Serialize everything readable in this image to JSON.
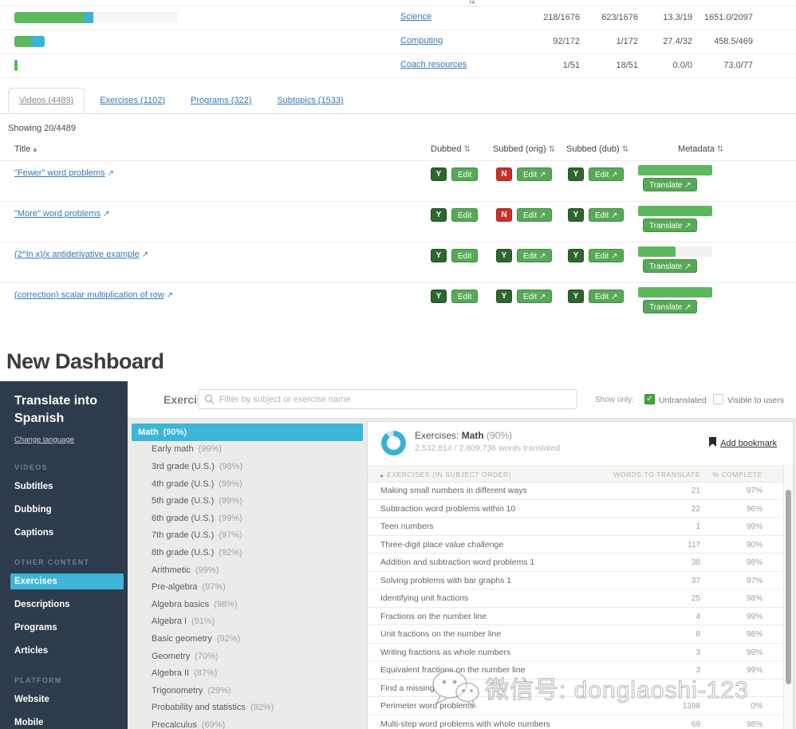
{
  "top_fragment": "⇅",
  "icons": {
    "sort": "⇅",
    "sort_asc": "▴",
    "external_link": "↗",
    "check": "✓",
    "thead_marker": "▴"
  },
  "colors": {
    "progress_green": "#5cb85c",
    "progress_blue": "#39b3d7",
    "badge_green": "#2d672d",
    "badge_red": "#c9302c",
    "link_blue": "#337ab7",
    "sidebar_navy": "#2d3b4c",
    "active_cyan": "#3db5d6",
    "donut_blue": "#36b1d5"
  },
  "old_dashboard": {
    "top_rows": [
      {
        "link": "Science",
        "bar_track": 204,
        "bar_green": 87,
        "bar_blue": 12,
        "cols": [
          "218/1676",
          "623/1676",
          "13.3/19",
          "1651.0/2097"
        ]
      },
      {
        "link": "Computing",
        "bar_track": 38,
        "bar_green": 21,
        "bar_blue": 17,
        "cols": [
          "92/172",
          "1/172",
          "27.4/32",
          "458.5/469"
        ]
      },
      {
        "link": "Coach resources",
        "bar_track": 4,
        "bar_green": 4,
        "bar_blue": 0,
        "cols": [
          "1/51",
          "18/51",
          "0.0/0",
          "73.0/77"
        ]
      }
    ],
    "tabs": [
      {
        "label": "Videos (4489)",
        "active": true
      },
      {
        "label": "Exercises (1102)",
        "active": false
      },
      {
        "label": "Programs (322)",
        "active": false
      },
      {
        "label": "Subtopics (1533)",
        "active": false
      }
    ],
    "showing": "Showing 20/4489",
    "table": {
      "headers": {
        "title": "Title",
        "dubbed": "Dubbed",
        "subbed_orig": "Subbed (orig)",
        "subbed_dub": "Subbed (dub)",
        "metadata": "Metadata"
      },
      "edit_label": "Edit",
      "translate_label": "Translate",
      "rows": [
        {
          "title": "\"Fewer\" word problems",
          "dubbed": "Y",
          "subbed_orig": "N",
          "subbed_dub": "Y",
          "meta_progress": 100
        },
        {
          "title": "\"More\" word problems",
          "dubbed": "Y",
          "subbed_orig": "N",
          "subbed_dub": "Y",
          "meta_progress": 100
        },
        {
          "title": "(2^ln x)/x antiderivative example",
          "dubbed": "Y",
          "subbed_orig": "Y",
          "subbed_dub": "Y",
          "meta_progress": 50
        },
        {
          "title": "(correction) scalar multiplication of row",
          "dubbed": "Y",
          "subbed_orig": "Y",
          "subbed_dub": "Y",
          "meta_progress": 100
        }
      ]
    }
  },
  "heading": "New Dashboard",
  "new_dashboard": {
    "sidebar": {
      "title": "Translate into Spanish",
      "change_language": "Change language",
      "sections": [
        {
          "label": "VIDEOS",
          "items": [
            {
              "label": "Subtitles",
              "active": false
            },
            {
              "label": "Dubbing",
              "active": false
            },
            {
              "label": "Captions",
              "active": false
            }
          ]
        },
        {
          "label": "OTHER CONTENT",
          "items": [
            {
              "label": "Exercises",
              "active": true
            },
            {
              "label": "Descriptions",
              "active": false
            },
            {
              "label": "Programs",
              "active": false
            },
            {
              "label": "Articles",
              "active": false
            }
          ]
        },
        {
          "label": "PLATFORM",
          "items": [
            {
              "label": "Website",
              "active": false
            },
            {
              "label": "Mobile",
              "active": false
            }
          ]
        }
      ]
    },
    "header": {
      "title": "Exercises",
      "filter_placeholder": "Filter by subject or exercise name",
      "show_only": "Show only:",
      "checkboxes": [
        {
          "label": "Untranslated",
          "checked": true
        },
        {
          "label": "Visible to users",
          "checked": false
        }
      ]
    },
    "subjects": [
      {
        "label": "Math",
        "percent": "(90%)",
        "active": true
      },
      {
        "label": "Early math",
        "percent": "(99%)",
        "active": false
      },
      {
        "label": "3rd grade (U.S.)",
        "percent": "(98%)",
        "active": false
      },
      {
        "label": "4th grade (U.S.)",
        "percent": "(99%)",
        "active": false
      },
      {
        "label": "5th grade (U.S.)",
        "percent": "(99%)",
        "active": false
      },
      {
        "label": "6th grade (U.S.)",
        "percent": "(99%)",
        "active": false
      },
      {
        "label": "7th grade (U.S.)",
        "percent": "(97%)",
        "active": false
      },
      {
        "label": "8th grade (U.S.)",
        "percent": "(92%)",
        "active": false
      },
      {
        "label": "Arithmetic",
        "percent": "(99%)",
        "active": false
      },
      {
        "label": "Pre-algebra",
        "percent": "(97%)",
        "active": false
      },
      {
        "label": "Algebra basics",
        "percent": "(98%)",
        "active": false
      },
      {
        "label": "Algebra I",
        "percent": "(91%)",
        "active": false
      },
      {
        "label": "Basic geometry",
        "percent": "(92%)",
        "active": false
      },
      {
        "label": "Geometry",
        "percent": "(70%)",
        "active": false
      },
      {
        "label": "Algebra II",
        "percent": "(87%)",
        "active": false
      },
      {
        "label": "Trigonometry",
        "percent": "(29%)",
        "active": false
      },
      {
        "label": "Probability and statistics",
        "percent": "(92%)",
        "active": false
      },
      {
        "label": "Precalculus",
        "percent": "(69%)",
        "active": false
      }
    ],
    "panel": {
      "title_prefix": "Exercises:",
      "title_subject": "Math",
      "title_percent": "(90%)",
      "subtitle": "2,532,814 / 2,809,736 words translated",
      "add_bookmark": "Add bookmark",
      "table": {
        "col1": "EXERCISES (IN SUBJECT ORDER)",
        "col2": "WORDS TO TRANSLATE",
        "col3": "% COMPLETE",
        "rows": [
          {
            "name": "Making small numbers in different ways",
            "words": "21",
            "complete": "97%"
          },
          {
            "name": "Subtraction word problems within 10",
            "words": "22",
            "complete": "96%"
          },
          {
            "name": "Teen numbers",
            "words": "1",
            "complete": "99%"
          },
          {
            "name": "Three-digit place value challenge",
            "words": "117",
            "complete": "90%"
          },
          {
            "name": "Addition and subtraction word problems 1",
            "words": "38",
            "complete": "98%"
          },
          {
            "name": "Solving problems with bar graphs 1",
            "words": "37",
            "complete": "97%"
          },
          {
            "name": "Identifying unit fractions",
            "words": "25",
            "complete": "98%"
          },
          {
            "name": "Fractions on the number line",
            "words": "4",
            "complete": "99%"
          },
          {
            "name": "Unit fractions on the number line",
            "words": "8",
            "complete": "98%"
          },
          {
            "name": "Writing fractions as whole numbers",
            "words": "3",
            "complete": "99%"
          },
          {
            "name": "Equivalent fractions on the number line",
            "words": "3",
            "complete": "99%"
          },
          {
            "name": "Find a missing",
            "words": "",
            "complete": ""
          },
          {
            "name": "Perimeter word problems",
            "words": "1398",
            "complete": "0%"
          },
          {
            "name": "Multi-step word problems with whole numbers",
            "words": "69",
            "complete": "98%"
          }
        ]
      }
    }
  },
  "watermark": {
    "text": "微信号: donglaoshi-123"
  }
}
